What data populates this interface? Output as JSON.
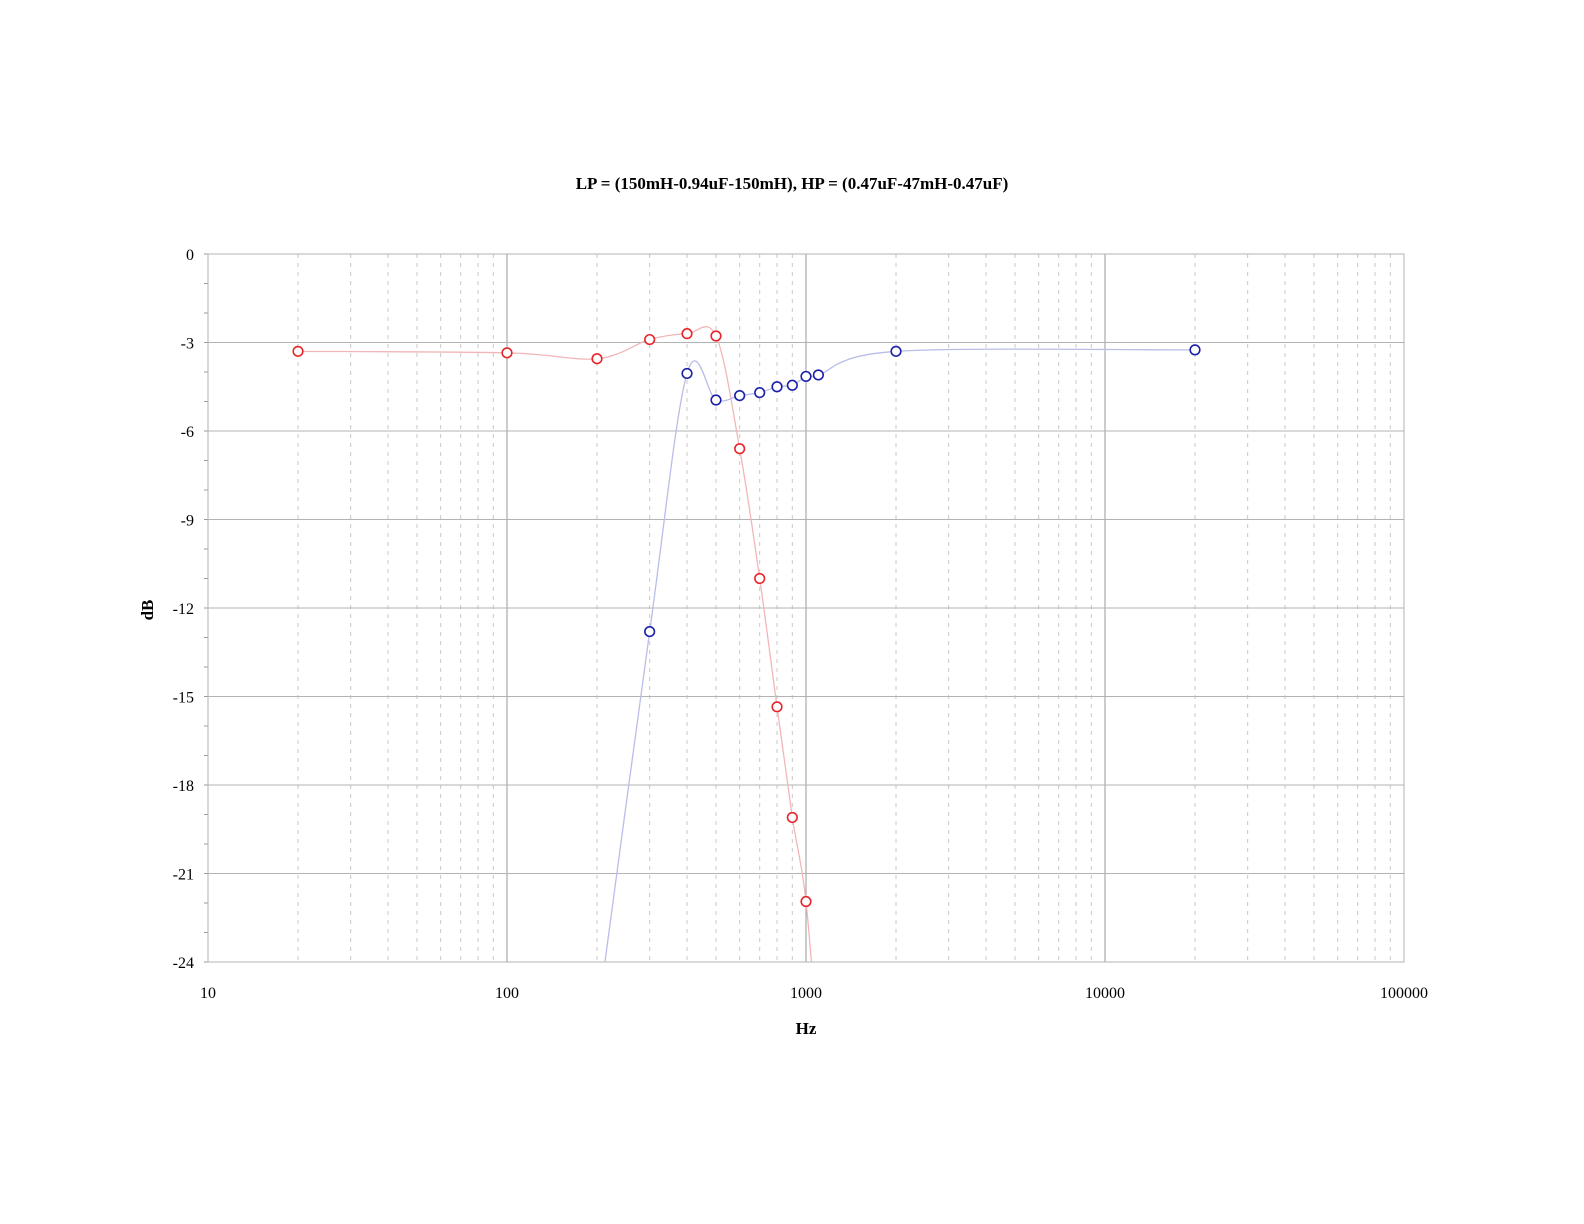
{
  "chart_data": {
    "type": "scatter",
    "title": "LP = (150mH-0.94uF-150mH), HP = (0.47uF-47mH-0.47uF)",
    "xlabel": "Hz",
    "ylabel": "dB",
    "x_scale": "log",
    "xlim": [
      10,
      100000
    ],
    "ylim": [
      -24,
      0
    ],
    "x_ticks": [
      "10",
      "100",
      "1000",
      "10000",
      "100000"
    ],
    "y_ticks": [
      "0",
      "-3",
      "-6",
      "-9",
      "-12",
      "-15",
      "-18",
      "-21",
      "-24"
    ],
    "grid": true,
    "legend": "none",
    "series": [
      {
        "color": "#e8242a",
        "line_color": "#f2b6b8",
        "x": [
          20,
          100,
          200,
          300,
          400,
          500,
          600,
          700,
          800,
          900,
          1000
        ],
        "y": [
          -3.3,
          -3.35,
          -3.55,
          -2.9,
          -2.7,
          -2.78,
          -6.6,
          -11.0,
          -15.35,
          -19.1,
          -21.95
        ]
      },
      {
        "color": "#1c1fa8",
        "line_color": "#b9bde8",
        "x": [
          300,
          400,
          500,
          600,
          700,
          800,
          900,
          1000,
          1100,
          2000,
          20000
        ],
        "y": [
          -12.8,
          -4.05,
          -4.95,
          -4.8,
          -4.7,
          -4.5,
          -4.45,
          -4.15,
          -4.1,
          -3.3,
          -3.25
        ]
      }
    ]
  }
}
